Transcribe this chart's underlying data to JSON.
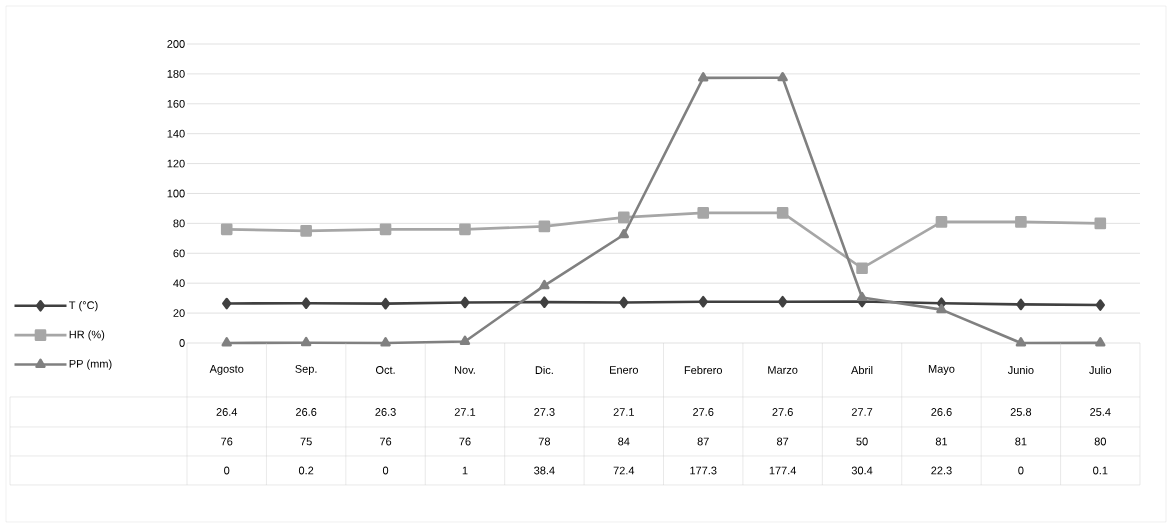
{
  "chart_data": {
    "type": "line",
    "categories": [
      "Agosto",
      "Sep.",
      "Oct.",
      "Nov.",
      "Dic.",
      "Enero",
      "Febrero",
      "Marzo",
      "Abril",
      "Mayo",
      "Junio",
      "Julio"
    ],
    "series": [
      {
        "name": "T  (°C)",
        "color": "#404040",
        "marker": "diamond",
        "values": [
          26.4,
          26.6,
          26.3,
          27.1,
          27.3,
          27.1,
          27.6,
          27.6,
          27.7,
          26.6,
          25.8,
          25.4
        ]
      },
      {
        "name": "HR  (%)",
        "color": "#a6a6a6",
        "marker": "square",
        "values": [
          76,
          75,
          76,
          76,
          78,
          84,
          87,
          87,
          50,
          81,
          81,
          80
        ]
      },
      {
        "name": "PP (mm)",
        "color": "#808080",
        "marker": "triangle",
        "values": [
          0,
          0.2,
          0,
          1,
          38.4,
          72.4,
          177.3,
          177.4,
          30.4,
          22.3,
          0,
          0.1
        ]
      }
    ],
    "ylim": [
      0,
      200
    ],
    "yticks": [
      0,
      20,
      40,
      60,
      80,
      100,
      120,
      140,
      160,
      180,
      200
    ],
    "grid": "y",
    "legend": "bottom",
    "data_labels": true,
    "line_style": "solid"
  }
}
